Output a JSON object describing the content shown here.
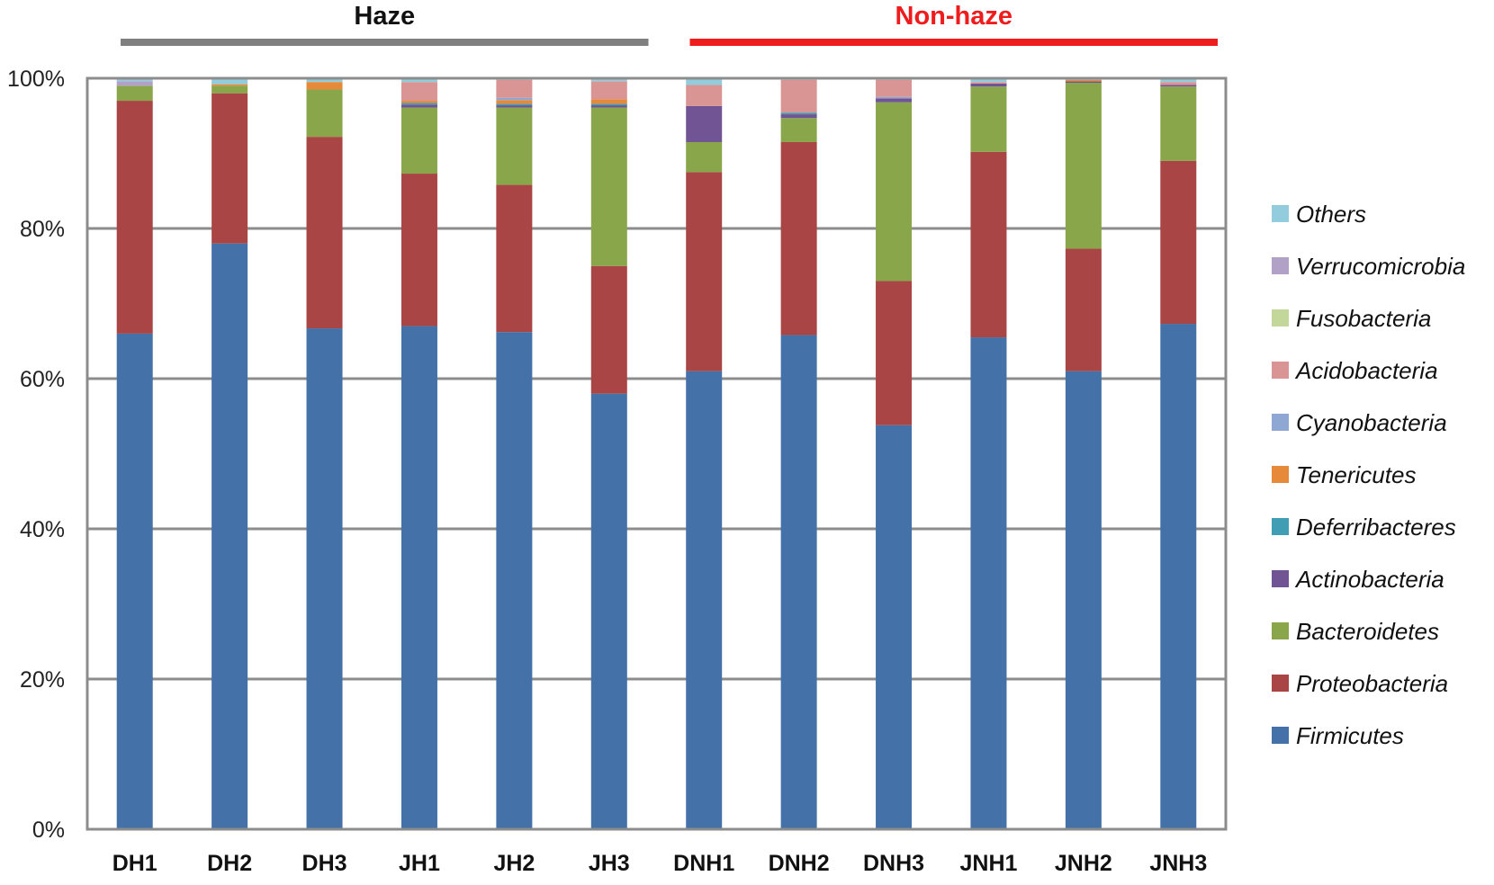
{
  "chart_data": {
    "type": "bar",
    "stacked": true,
    "percent": true,
    "categories": [
      "DH1",
      "DH2",
      "DH3",
      "JH1",
      "JH2",
      "JH3",
      "DNH1",
      "DNH2",
      "DNH3",
      "JNH1",
      "JNH2",
      "JNH3"
    ],
    "groups": [
      {
        "label": "Haze",
        "color": "#7f7f7f",
        "categories": [
          "DH1",
          "DH2",
          "DH3",
          "JH1",
          "JH2",
          "JH3"
        ]
      },
      {
        "label": "Non-haze",
        "color": "#ee1c1c",
        "categories": [
          "DNH1",
          "DNH2",
          "DNH3",
          "JNH1",
          "JNH2",
          "JNH3"
        ]
      }
    ],
    "yticks": [
      "0%",
      "20%",
      "40%",
      "60%",
      "80%",
      "100%"
    ],
    "ylim": [
      0,
      100
    ],
    "grid": true,
    "legend_position": "right",
    "series": [
      {
        "name": "Firmicutes",
        "color": "#4472a8",
        "values": [
          66,
          78,
          66.7,
          67,
          66.2,
          58,
          61,
          65.8,
          53.8,
          65.5,
          61,
          67.3
        ]
      },
      {
        "name": "Proteobacteria",
        "color": "#a94545",
        "values": [
          31,
          20,
          25.5,
          20.3,
          19.6,
          17,
          26.5,
          25.7,
          19.2,
          24.7,
          16.3,
          21.7
        ]
      },
      {
        "name": "Bacteroidetes",
        "color": "#89a64b",
        "values": [
          2,
          1,
          6.3,
          8.8,
          10.3,
          21.1,
          4,
          3.2,
          23.8,
          8.7,
          22.1,
          9.9
        ]
      },
      {
        "name": "Actinobacteria",
        "color": "#715493",
        "values": [
          0,
          0,
          0,
          0.4,
          0.3,
          0.3,
          4.8,
          0.5,
          0.5,
          0.4,
          0.2,
          0.2
        ]
      },
      {
        "name": "Deferribacteres",
        "color": "#3f9db4",
        "values": [
          0,
          0,
          0,
          0.2,
          0.2,
          0.2,
          0,
          0.2,
          0,
          0,
          0,
          0
        ]
      },
      {
        "name": "Tenericutes",
        "color": "#e68a3a",
        "values": [
          0,
          0.2,
          1,
          0.3,
          0.5,
          0.6,
          0,
          0,
          0,
          0,
          0.2,
          0
        ]
      },
      {
        "name": "Cyanobacteria",
        "color": "#8fa8d3",
        "values": [
          0,
          0,
          0,
          0,
          0.3,
          0,
          0,
          0,
          0.2,
          0,
          0,
          0
        ]
      },
      {
        "name": "Acidobacteria",
        "color": "#d99594",
        "values": [
          0,
          0,
          0,
          2.5,
          2.4,
          2.4,
          2.8,
          4.4,
          2.3,
          0.2,
          0,
          0.4
        ]
      },
      {
        "name": "Fusobacteria",
        "color": "#c4d79b",
        "values": [
          0,
          0,
          0,
          0,
          0,
          0,
          0,
          0,
          0,
          0,
          0,
          0
        ]
      },
      {
        "name": "Verrucomicrobia",
        "color": "#b2a1c7",
        "values": [
          0.6,
          0,
          0,
          0,
          0,
          0,
          0,
          0,
          0,
          0,
          0,
          0
        ]
      },
      {
        "name": "Others",
        "color": "#93cddd",
        "values": [
          0.4,
          0.8,
          0.5,
          0.5,
          0.2,
          0.4,
          0.9,
          0.2,
          0.2,
          0.5,
          0.2,
          0.5
        ]
      }
    ]
  }
}
